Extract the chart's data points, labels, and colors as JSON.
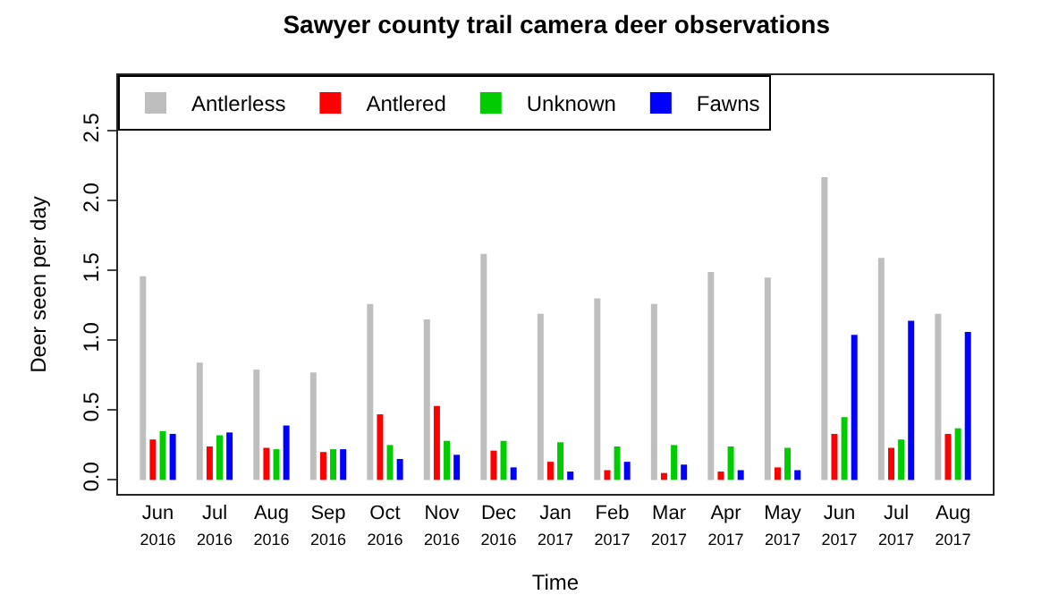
{
  "chart_data": {
    "type": "bar",
    "title": "Sawyer county trail camera deer observations",
    "xlabel": "Time",
    "ylabel": "Deer seen per day",
    "categories": [
      "Jun 2016",
      "Jul 2016",
      "Aug 2016",
      "Sep 2016",
      "Oct 2016",
      "Nov 2016",
      "Dec 2016",
      "Jan 2017",
      "Feb 2017",
      "Mar 2017",
      "Apr 2017",
      "May 2017",
      "Jun 2017",
      "Jul 2017",
      "Aug 2017"
    ],
    "series": [
      {
        "name": "Antlerless",
        "color": "#bebebe",
        "values": [
          1.46,
          0.84,
          0.79,
          0.77,
          1.26,
          1.15,
          1.62,
          1.19,
          1.3,
          1.26,
          1.49,
          1.45,
          2.17,
          1.59,
          1.19
        ]
      },
      {
        "name": "Antlered",
        "color": "#ff0000",
        "values": [
          0.29,
          0.24,
          0.23,
          0.2,
          0.47,
          0.53,
          0.21,
          0.13,
          0.07,
          0.05,
          0.06,
          0.09,
          0.33,
          0.23,
          0.33
        ]
      },
      {
        "name": "Unknown",
        "color": "#00cd00",
        "values": [
          0.35,
          0.32,
          0.22,
          0.22,
          0.25,
          0.28,
          0.28,
          0.27,
          0.24,
          0.25,
          0.24,
          0.23,
          0.45,
          0.29,
          0.37
        ]
      },
      {
        "name": "Fawns",
        "color": "#0000ff",
        "values": [
          0.33,
          0.34,
          0.39,
          0.22,
          0.15,
          0.18,
          0.09,
          0.06,
          0.13,
          0.11,
          0.07,
          0.07,
          1.04,
          1.14,
          1.06
        ]
      }
    ],
    "ylim": [
      -0.1,
      2.9
    ],
    "yticks": [
      {
        "value": 0,
        "label": "0.0"
      },
      {
        "value": 0.5,
        "label": "0.5"
      },
      {
        "value": 1,
        "label": "1.0"
      },
      {
        "value": 1.5,
        "label": "1.5"
      },
      {
        "value": 2,
        "label": "2.0"
      },
      {
        "value": 2.5,
        "label": "2.5"
      }
    ],
    "grid": false,
    "legend": "top left"
  }
}
